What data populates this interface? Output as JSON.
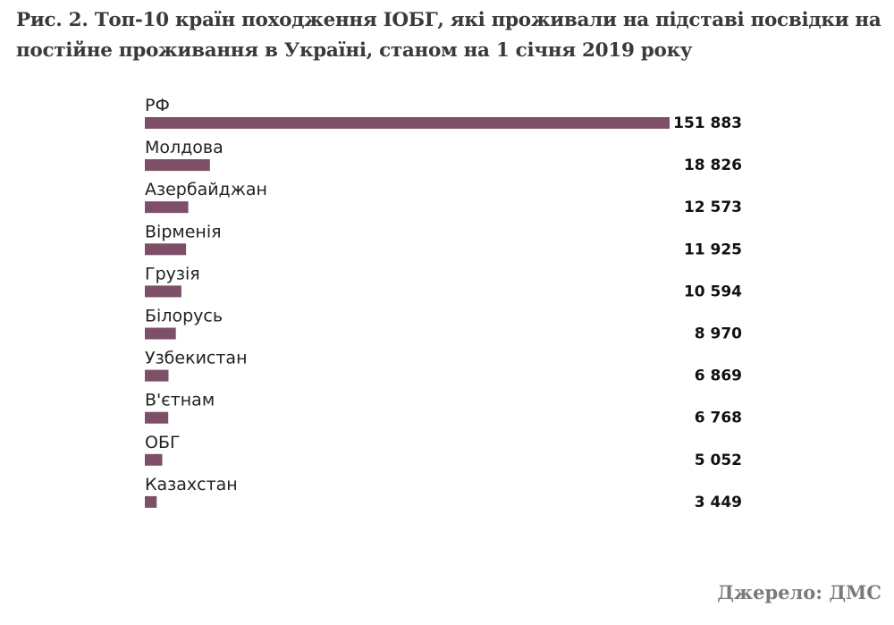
{
  "chart_data": {
    "type": "bar",
    "orientation": "horizontal",
    "title": "Рис. 2. Топ-10 країн походження ІОБГ, які проживали на підставі посвідки на постійне проживання в Україні, станом на 1 січня 2019 року",
    "categories": [
      "РФ",
      "Молдова",
      "Азербайджан",
      "Вірменія",
      "Грузія",
      "Білорусь",
      "Узбекистан",
      "В'єтнам",
      "ОБГ",
      "Казахстан"
    ],
    "values": [
      151883,
      18826,
      12573,
      11925,
      10594,
      8970,
      6869,
      6768,
      5052,
      3449
    ],
    "value_labels": [
      "151 883",
      "18 826",
      "12 573",
      "11 925",
      "10 594",
      "8 970",
      "6 869",
      "6 768",
      "5 052",
      "3 449"
    ],
    "xlim": [
      0,
      151883
    ],
    "grid": false,
    "legend": "none",
    "bar_color": "#7d5068"
  },
  "source": "Джерело: ДМС"
}
